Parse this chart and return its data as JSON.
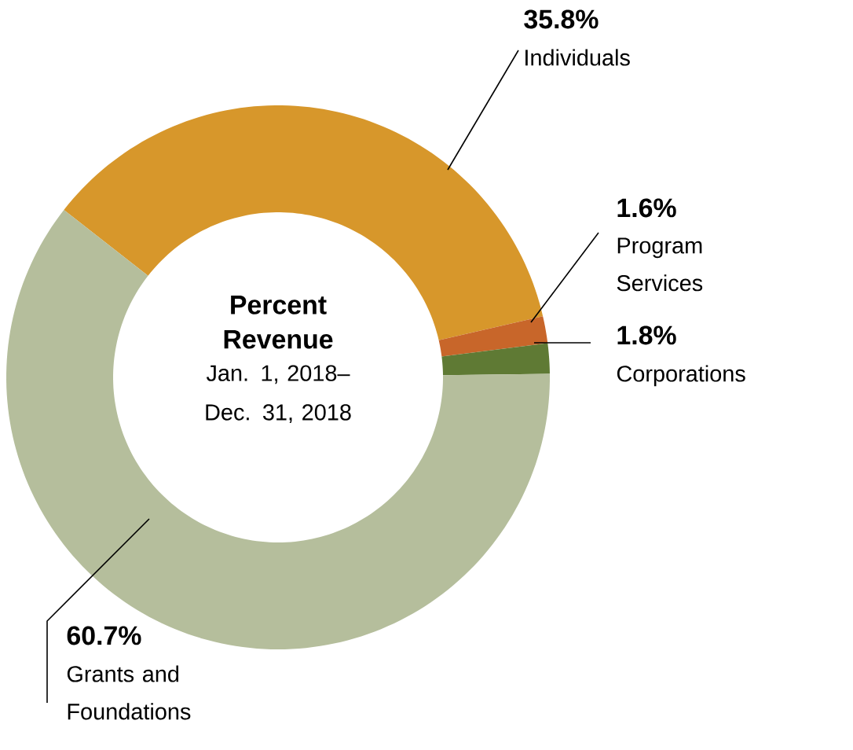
{
  "chart_data": {
    "type": "donut",
    "title": "Percent Revenue",
    "subtitle": "Jan. 1, 2018– Dec. 31, 2018",
    "categories": [
      "Individuals",
      "Program Services",
      "Corporations",
      "Grants and Foundations"
    ],
    "values": [
      35.8,
      1.6,
      1.8,
      60.7
    ],
    "colors": [
      "#d7972b",
      "#c8662a",
      "#5f7a34",
      "#b5be9c"
    ],
    "value_labels": [
      "35.8%",
      "1.6%",
      "1.8%",
      "60.7%"
    ]
  }
}
